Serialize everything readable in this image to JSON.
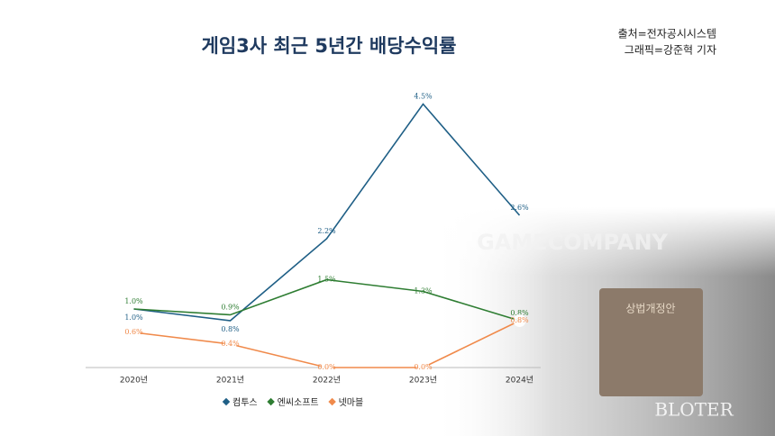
{
  "chart_data": {
    "type": "line",
    "title": "게임3사 최근 5년간 배당수익률",
    "source": "출처=전자공시시스템",
    "credit": "그래픽=강준혁 기자",
    "background_texts": [
      "GAMECOMPANY",
      "상법개정안"
    ],
    "watermark": "BLOTER",
    "categories": [
      "2020년",
      "2021년",
      "2022년",
      "2023년",
      "2024년"
    ],
    "series": [
      {
        "name": "컴투스",
        "color": "#1f5f86",
        "values": [
          1.0,
          0.8,
          2.2,
          4.5,
          2.6
        ],
        "value_labels": [
          "1.0%",
          "0.8%",
          "2.2%",
          "4.5%",
          "2.6%"
        ]
      },
      {
        "name": "엔씨소프트",
        "color": "#2e7d32",
        "values": [
          1.0,
          0.9,
          1.5,
          1.3,
          0.8
        ],
        "value_labels": [
          "1.0%",
          "0.9%",
          "1.5%",
          "1.3%",
          "0.8%"
        ]
      },
      {
        "name": "넷마블",
        "color": "#f08a4b",
        "values": [
          0.6,
          0.4,
          0.0,
          0.0,
          0.8
        ],
        "value_labels": [
          "0.6%",
          "0.4%",
          "0.0%",
          "0.0%",
          "0.8%"
        ]
      }
    ],
    "ylim": [
      0,
      5
    ]
  }
}
